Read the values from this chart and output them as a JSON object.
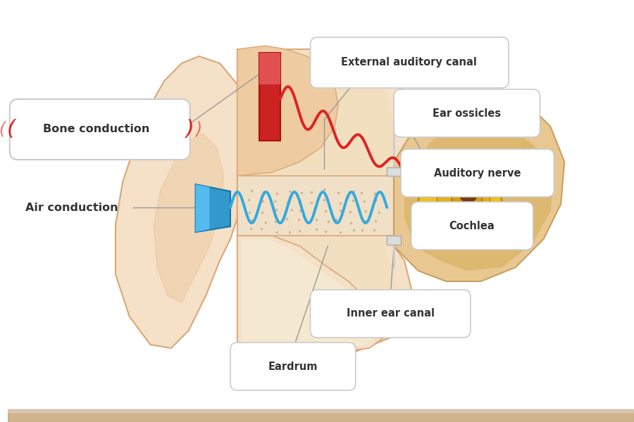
{
  "bg_color": "#ffffff",
  "labels": {
    "bone_conduction": "Bone conduction",
    "air_conduction": "Air conduction",
    "external_auditory_canal": "External auditory canal",
    "ear_ossicles": "Ear ossicles",
    "auditory_nerve": "Auditory nerve",
    "cochlea": "Cochlea",
    "inner_ear_canal": "Inner ear canal",
    "eardrum": "Eardrum"
  },
  "colors": {
    "ear_light": "#f5e0c8",
    "ear_mid": "#eecba0",
    "ear_dark": "#d9a878",
    "ear_darker": "#c8906a",
    "canal_bg": "#f8eedc",
    "canal_inner": "#ece0c4",
    "bone_device_red": "#cc2222",
    "bone_device_light": "#e05050",
    "speaker_blue": "#3399cc",
    "speaker_light": "#55bbee",
    "cochlea_yellow": "#f0c020",
    "cochlea_mid": "#e0a810",
    "cochlea_dark": "#c08800",
    "cochlea_brown": "#8b4513",
    "ossicle_yellow": "#e8c040",
    "inner_bone_tan": "#e8c890",
    "inner_bone_mid": "#d4a860",
    "red_wave": "#dd2222",
    "blue_wave": "#33aadd",
    "white": "#ffffff",
    "text_dark": "#333333",
    "label_line": "#aaaaaa"
  }
}
